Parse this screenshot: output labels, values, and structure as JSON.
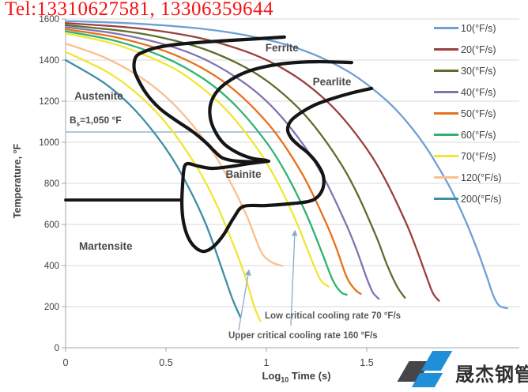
{
  "watermark": {
    "text": "Tel:13310627581, 13306359644",
    "color": "#f91010"
  },
  "logo": {
    "text": "晟杰钢管",
    "blue": "#1f90d8",
    "dark": "#45464a"
  },
  "chart_data": {
    "type": "line",
    "title": "",
    "xlabel": "Log10 Time (s)",
    "xlabel_parts": {
      "prefix": "Log",
      "sub": "10",
      "suffix": " Time (s)"
    },
    "ylabel": "Temperature, °F",
    "xlim": [
      0,
      2.26
    ],
    "ylim": [
      0,
      1600
    ],
    "x_ticks": [
      0,
      0.5,
      1,
      1.5
    ],
    "y_ticks": [
      0,
      200,
      400,
      600,
      800,
      1000,
      1200,
      1400,
      1600
    ],
    "grid": "horizontal",
    "legend_position": "right",
    "legend": [
      {
        "label": "10(°F/s)",
        "color": "#6f9fd4"
      },
      {
        "label": "20(°F/s)",
        "color": "#9a403d"
      },
      {
        "label": "30(°F/s)",
        "color": "#5c6e2d"
      },
      {
        "label": "40(°F/s)",
        "color": "#8273af"
      },
      {
        "label": "50(°F/s)",
        "color": "#e8711c"
      },
      {
        "label": "60(°F/s)",
        "color": "#2fb371"
      },
      {
        "label": "70(°F/s)",
        "color": "#f0e636"
      },
      {
        "label": "120(°F/s)",
        "color": "#f9bf8f"
      },
      {
        "label": "200(°F/s)",
        "color": "#3d8ea6"
      }
    ],
    "series": [
      {
        "name": "10(°F/s)",
        "rate": 10,
        "color": "#6f9fd4",
        "points": [
          [
            0,
            1590
          ],
          [
            0.3,
            1580
          ],
          [
            0.6,
            1560
          ],
          [
            0.8,
            1537
          ],
          [
            1.0,
            1500
          ],
          [
            1.15,
            1459
          ],
          [
            1.3,
            1400
          ],
          [
            1.45,
            1318
          ],
          [
            1.6,
            1202
          ],
          [
            1.7,
            1099
          ],
          [
            1.8,
            969
          ],
          [
            1.9,
            806
          ],
          [
            1.95,
            709
          ],
          [
            2.0,
            600
          ],
          [
            2.05,
            478
          ],
          [
            2.1,
            341
          ],
          [
            2.13,
            255
          ],
          [
            2.16,
            205
          ],
          [
            2.2,
            192
          ]
        ]
      },
      {
        "name": "20(°F/s)",
        "rate": 20,
        "color": "#9a403d",
        "points": [
          [
            0,
            1580
          ],
          [
            0.3,
            1560
          ],
          [
            0.5,
            1537
          ],
          [
            0.7,
            1500
          ],
          [
            0.9,
            1441
          ],
          [
            1.05,
            1376
          ],
          [
            1.2,
            1283
          ],
          [
            1.35,
            1152
          ],
          [
            1.5,
            968
          ],
          [
            1.6,
            804
          ],
          [
            1.7,
            598
          ],
          [
            1.75,
            475
          ],
          [
            1.8,
            340
          ],
          [
            1.83,
            265
          ],
          [
            1.86,
            228
          ]
        ]
      },
      {
        "name": "30(°F/s)",
        "rate": 30,
        "color": "#5c6e2d",
        "points": [
          [
            0,
            1570
          ],
          [
            0.3,
            1540
          ],
          [
            0.5,
            1505
          ],
          [
            0.7,
            1450
          ],
          [
            0.9,
            1362
          ],
          [
            1.05,
            1263
          ],
          [
            1.2,
            1124
          ],
          [
            1.35,
            928
          ],
          [
            1.45,
            755
          ],
          [
            1.55,
            535
          ],
          [
            1.6,
            406
          ],
          [
            1.65,
            300
          ],
          [
            1.69,
            243
          ]
        ]
      },
      {
        "name": "40(°F/s)",
        "rate": 40,
        "color": "#8273af",
        "points": [
          [
            0,
            1560
          ],
          [
            0.25,
            1529
          ],
          [
            0.5,
            1474
          ],
          [
            0.7,
            1400
          ],
          [
            0.9,
            1282
          ],
          [
            1.05,
            1151
          ],
          [
            1.2,
            966
          ],
          [
            1.3,
            802
          ],
          [
            1.4,
            595
          ],
          [
            1.45,
            475
          ],
          [
            1.5,
            338
          ],
          [
            1.53,
            270
          ],
          [
            1.56,
            238
          ]
        ]
      },
      {
        "name": "50(°F/s)",
        "rate": 50,
        "color": "#e8711c",
        "points": [
          [
            0,
            1550
          ],
          [
            0.25,
            1511
          ],
          [
            0.5,
            1442
          ],
          [
            0.7,
            1350
          ],
          [
            0.85,
            1246
          ],
          [
            1.0,
            1100
          ],
          [
            1.1,
            970
          ],
          [
            1.2,
            808
          ],
          [
            1.3,
            602
          ],
          [
            1.35,
            481
          ],
          [
            1.4,
            344
          ],
          [
            1.44,
            285
          ],
          [
            1.47,
            262
          ]
        ]
      },
      {
        "name": "60(°F/s)",
        "rate": 60,
        "color": "#2fb371",
        "points": [
          [
            0,
            1540
          ],
          [
            0.25,
            1493
          ],
          [
            0.5,
            1410
          ],
          [
            0.7,
            1300
          ],
          [
            0.85,
            1175
          ],
          [
            1.0,
            1000
          ],
          [
            1.1,
            845
          ],
          [
            1.2,
            648
          ],
          [
            1.28,
            455
          ],
          [
            1.33,
            330
          ],
          [
            1.37,
            272
          ],
          [
            1.4,
            258
          ]
        ]
      },
      {
        "name": "70(°F/s)",
        "rate": 70,
        "color": "#f0e636",
        "points": [
          [
            0,
            1530
          ],
          [
            0.25,
            1476
          ],
          [
            0.5,
            1379
          ],
          [
            0.65,
            1287
          ],
          [
            0.8,
            1158
          ],
          [
            0.95,
            976
          ],
          [
            1.05,
            816
          ],
          [
            1.15,
            611
          ],
          [
            1.22,
            440
          ],
          [
            1.27,
            330
          ],
          [
            1.31,
            298
          ]
        ]
      },
      {
        "name": "120(°F/s)",
        "rate": 120,
        "color": "#f9bf8f",
        "points": [
          [
            0,
            1480
          ],
          [
            0.2,
            1410
          ],
          [
            0.4,
            1299
          ],
          [
            0.55,
            1174
          ],
          [
            0.7,
            999
          ],
          [
            0.8,
            843
          ],
          [
            0.9,
            647
          ],
          [
            0.97,
            475
          ],
          [
            1.02,
            420
          ],
          [
            1.08,
            398
          ]
        ]
      },
      {
        "name": "160(°F/s)",
        "rate": 160,
        "color": "#f0e636",
        "points": [
          [
            0,
            1440
          ],
          [
            0.2,
            1346
          ],
          [
            0.35,
            1242
          ],
          [
            0.5,
            1094
          ],
          [
            0.65,
            885
          ],
          [
            0.75,
            701
          ],
          [
            0.85,
            467
          ],
          [
            0.9,
            330
          ],
          [
            0.94,
            200
          ],
          [
            0.97,
            130
          ]
        ]
      },
      {
        "name": "200(°F/s)",
        "rate": 200,
        "color": "#3d8ea6",
        "points": [
          [
            0,
            1400
          ],
          [
            0.2,
            1283
          ],
          [
            0.35,
            1152
          ],
          [
            0.5,
            968
          ],
          [
            0.6,
            804
          ],
          [
            0.7,
            598
          ],
          [
            0.78,
            380
          ],
          [
            0.83,
            240
          ],
          [
            0.87,
            150
          ]
        ]
      }
    ],
    "boundaries": [
      {
        "name": "ferrite-start",
        "points": [
          [
            1.09,
            1512
          ],
          [
            0.894,
            1500
          ],
          [
            0.697,
            1488
          ],
          [
            0.559,
            1477
          ],
          [
            0.46,
            1462
          ],
          [
            0.394,
            1442
          ],
          [
            0.35,
            1415
          ],
          [
            0.342,
            1354
          ],
          [
            0.37,
            1288
          ],
          [
            0.413,
            1223
          ],
          [
            0.472,
            1162
          ],
          [
            0.547,
            1108
          ],
          [
            0.63,
            1054
          ],
          [
            0.697,
            1000
          ],
          [
            0.744,
            954
          ],
          [
            0.783,
            923
          ],
          [
            0.854,
            908
          ],
          [
            0.97,
            904
          ]
        ]
      },
      {
        "name": "pearlite-start",
        "points": [
          [
            1.425,
            1388
          ],
          [
            1.248,
            1392
          ],
          [
            1.11,
            1385
          ],
          [
            1.0,
            1369
          ],
          [
            0.9,
            1342
          ],
          [
            0.823,
            1304
          ],
          [
            0.76,
            1254
          ],
          [
            0.724,
            1192
          ],
          [
            0.72,
            1123
          ],
          [
            0.744,
            1054
          ],
          [
            0.79,
            992
          ],
          [
            0.854,
            950
          ],
          [
            0.925,
            923
          ],
          [
            1.0,
            912
          ]
        ]
      },
      {
        "name": "bainite-region",
        "points": [
          [
            1.524,
            1262
          ],
          [
            1.417,
            1238
          ],
          [
            1.327,
            1212
          ],
          [
            1.24,
            1181
          ],
          [
            1.169,
            1142
          ],
          [
            1.122,
            1104
          ],
          [
            1.106,
            1062
          ],
          [
            1.122,
            1023
          ],
          [
            1.157,
            988
          ],
          [
            1.209,
            946
          ],
          [
            1.256,
            892
          ],
          [
            1.283,
            838
          ],
          [
            1.283,
            781
          ],
          [
            1.256,
            735
          ],
          [
            1.209,
            712
          ],
          [
            1.11,
            700
          ],
          [
            0.992,
            692
          ],
          [
            0.886,
            688
          ],
          [
            0.839,
            635
          ],
          [
            0.787,
            550
          ],
          [
            0.736,
            492
          ],
          [
            0.689,
            469
          ],
          [
            0.646,
            488
          ],
          [
            0.61,
            538
          ],
          [
            0.587,
            612
          ],
          [
            0.579,
            700
          ],
          [
            0.583,
            800
          ],
          [
            0.591,
            877
          ],
          [
            0.61,
            896
          ],
          [
            0.657,
            885
          ],
          [
            0.724,
            873
          ],
          [
            0.815,
            881
          ],
          [
            0.913,
            896
          ],
          [
            1.012,
            908
          ]
        ]
      },
      {
        "name": "ms-line",
        "points": [
          [
            0,
            719
          ],
          [
            0.579,
            719
          ]
        ]
      }
    ],
    "bs_line": {
      "label": "Bs=1,050 °F",
      "label_parts": {
        "main": "B",
        "sub": "s",
        "rest": "=1,050 °F"
      },
      "temp": 1050,
      "x_range": [
        0,
        1.07
      ],
      "color": "#95b3d7"
    },
    "region_labels": [
      {
        "text": "Austenite",
        "x": 0.165,
        "y": 1223
      },
      {
        "text": "Ferrite",
        "x": 1.078,
        "y": 1458
      },
      {
        "text": "Pearlite",
        "x": 1.327,
        "y": 1292
      },
      {
        "text": "Bainite",
        "x": 0.886,
        "y": 842
      },
      {
        "text": "Martensite",
        "x": 0.2,
        "y": 492
      }
    ],
    "annotations": [
      {
        "id": "low",
        "text": "Low critical cooling rate 70 °F/s",
        "arrow_from": [
          1.122,
          108
        ],
        "arrow_to": [
          1.142,
          569
        ]
      },
      {
        "id": "upper",
        "text": "Upper critical cooling rate 160 °F/s",
        "arrow_from": [
          0.862,
          85
        ],
        "arrow_to": [
          0.913,
          377
        ]
      }
    ],
    "colors": {
      "boundary": "#151515",
      "grid": "#d9d9d9",
      "axis": "#a6a6a6",
      "tick_text": "#404040",
      "arrow": "#8aa9cc"
    }
  }
}
